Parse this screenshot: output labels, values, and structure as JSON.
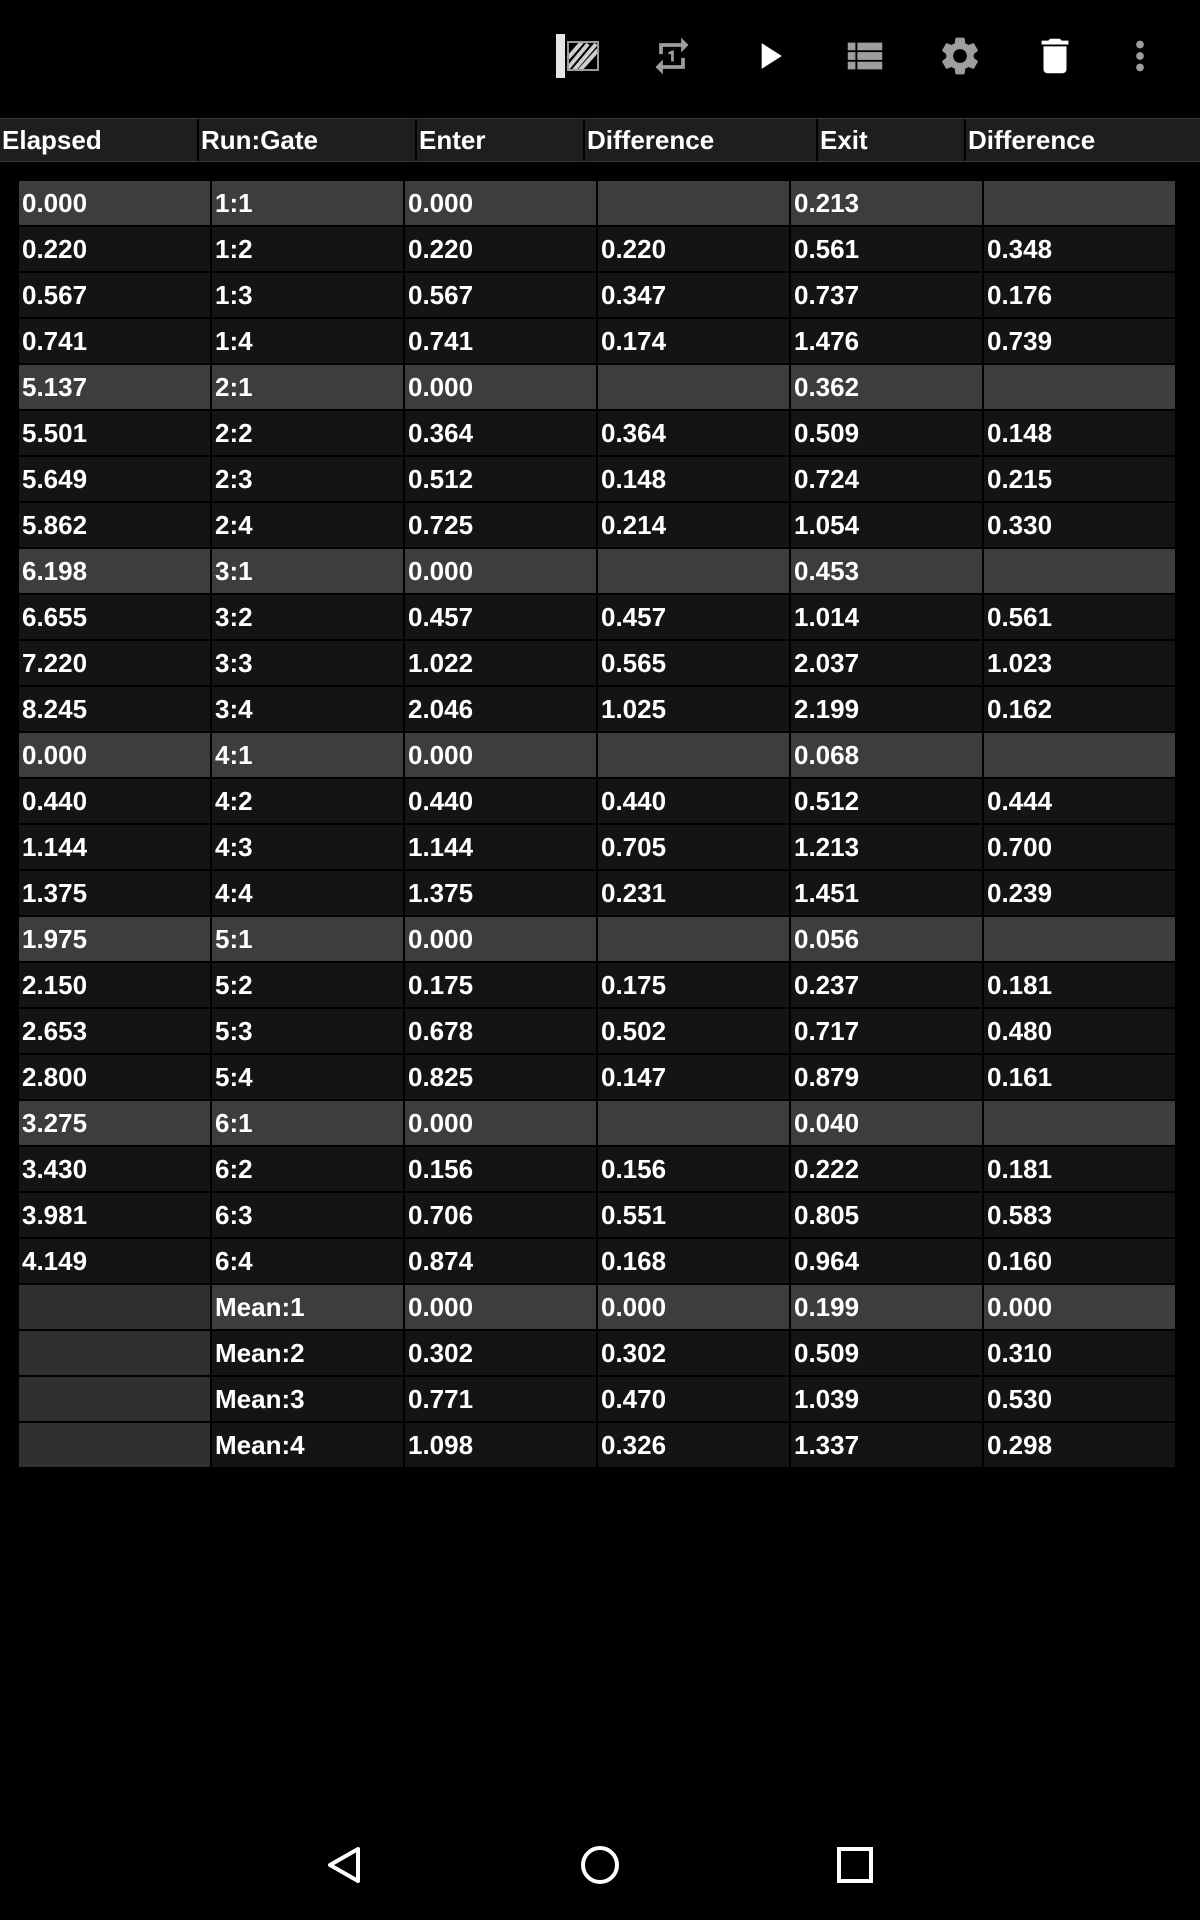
{
  "toolbar": {
    "icons": [
      "timing-gate-icon",
      "repeat-one-icon",
      "play-icon",
      "list-icon",
      "settings-icon",
      "delete-icon",
      "more-vert-icon"
    ]
  },
  "columns": [
    "Elapsed",
    "Run:Gate",
    "Enter",
    "Difference",
    "Exit",
    "Difference"
  ],
  "rows": [
    {
      "first": true,
      "cells": [
        "0.000",
        "1:1",
        "0.000",
        "",
        "0.213",
        ""
      ]
    },
    {
      "first": false,
      "cells": [
        "0.220",
        "1:2",
        "0.220",
        "0.220",
        "0.561",
        "0.348"
      ]
    },
    {
      "first": false,
      "cells": [
        "0.567",
        "1:3",
        "0.567",
        "0.347",
        "0.737",
        "0.176"
      ]
    },
    {
      "first": false,
      "cells": [
        "0.741",
        "1:4",
        "0.741",
        "0.174",
        "1.476",
        "0.739"
      ]
    },
    {
      "first": true,
      "cells": [
        "5.137",
        "2:1",
        "0.000",
        "",
        "0.362",
        ""
      ]
    },
    {
      "first": false,
      "cells": [
        "5.501",
        "2:2",
        "0.364",
        "0.364",
        "0.509",
        "0.148"
      ]
    },
    {
      "first": false,
      "cells": [
        "5.649",
        "2:3",
        "0.512",
        "0.148",
        "0.724",
        "0.215"
      ]
    },
    {
      "first": false,
      "cells": [
        "5.862",
        "2:4",
        "0.725",
        "0.214",
        "1.054",
        "0.330"
      ]
    },
    {
      "first": true,
      "cells": [
        "6.198",
        "3:1",
        "0.000",
        "",
        "0.453",
        ""
      ]
    },
    {
      "first": false,
      "cells": [
        "6.655",
        "3:2",
        "0.457",
        "0.457",
        "1.014",
        "0.561"
      ]
    },
    {
      "first": false,
      "cells": [
        "7.220",
        "3:3",
        "1.022",
        "0.565",
        "2.037",
        "1.023"
      ]
    },
    {
      "first": false,
      "cells": [
        "8.245",
        "3:4",
        "2.046",
        "1.025",
        "2.199",
        "0.162"
      ]
    },
    {
      "first": true,
      "cells": [
        "0.000",
        "4:1",
        "0.000",
        "",
        "0.068",
        ""
      ]
    },
    {
      "first": false,
      "cells": [
        "0.440",
        "4:2",
        "0.440",
        "0.440",
        "0.512",
        "0.444"
      ]
    },
    {
      "first": false,
      "cells": [
        "1.144",
        "4:3",
        "1.144",
        "0.705",
        "1.213",
        "0.700"
      ]
    },
    {
      "first": false,
      "cells": [
        "1.375",
        "4:4",
        "1.375",
        "0.231",
        "1.451",
        "0.239"
      ]
    },
    {
      "first": true,
      "cells": [
        "1.975",
        "5:1",
        "0.000",
        "",
        "0.056",
        ""
      ]
    },
    {
      "first": false,
      "cells": [
        "2.150",
        "5:2",
        "0.175",
        "0.175",
        "0.237",
        "0.181"
      ]
    },
    {
      "first": false,
      "cells": [
        "2.653",
        "5:3",
        "0.678",
        "0.502",
        "0.717",
        "0.480"
      ]
    },
    {
      "first": false,
      "cells": [
        "2.800",
        "5:4",
        "0.825",
        "0.147",
        "0.879",
        "0.161"
      ]
    },
    {
      "first": true,
      "cells": [
        "3.275",
        "6:1",
        "0.000",
        "",
        "0.040",
        ""
      ]
    },
    {
      "first": false,
      "cells": [
        "3.430",
        "6:2",
        "0.156",
        "0.156",
        "0.222",
        "0.181"
      ]
    },
    {
      "first": false,
      "cells": [
        "3.981",
        "6:3",
        "0.706",
        "0.551",
        "0.805",
        "0.583"
      ]
    },
    {
      "first": false,
      "cells": [
        "4.149",
        "6:4",
        "0.874",
        "0.168",
        "0.964",
        "0.160"
      ]
    },
    {
      "first": true,
      "mean": true,
      "cells": [
        "",
        "Mean:1",
        "0.000",
        "0.000",
        "0.199",
        "0.000"
      ]
    },
    {
      "first": false,
      "mean": true,
      "cells": [
        "",
        "Mean:2",
        "0.302",
        "0.302",
        "0.509",
        "0.310"
      ]
    },
    {
      "first": false,
      "mean": true,
      "cells": [
        "",
        "Mean:3",
        "0.771",
        "0.470",
        "1.039",
        "0.530"
      ]
    },
    {
      "first": false,
      "mean": true,
      "cells": [
        "",
        "Mean:4",
        "1.098",
        "0.326",
        "1.337",
        "0.298"
      ]
    }
  ],
  "navbar": {
    "icons": [
      "back-icon",
      "home-icon",
      "recents-icon"
    ]
  },
  "colors": {
    "background": "#000000",
    "group_first_row": "#3d3d3d",
    "row": "#141414",
    "header": "#1e1e1e",
    "icon": "#bdbdbd"
  }
}
